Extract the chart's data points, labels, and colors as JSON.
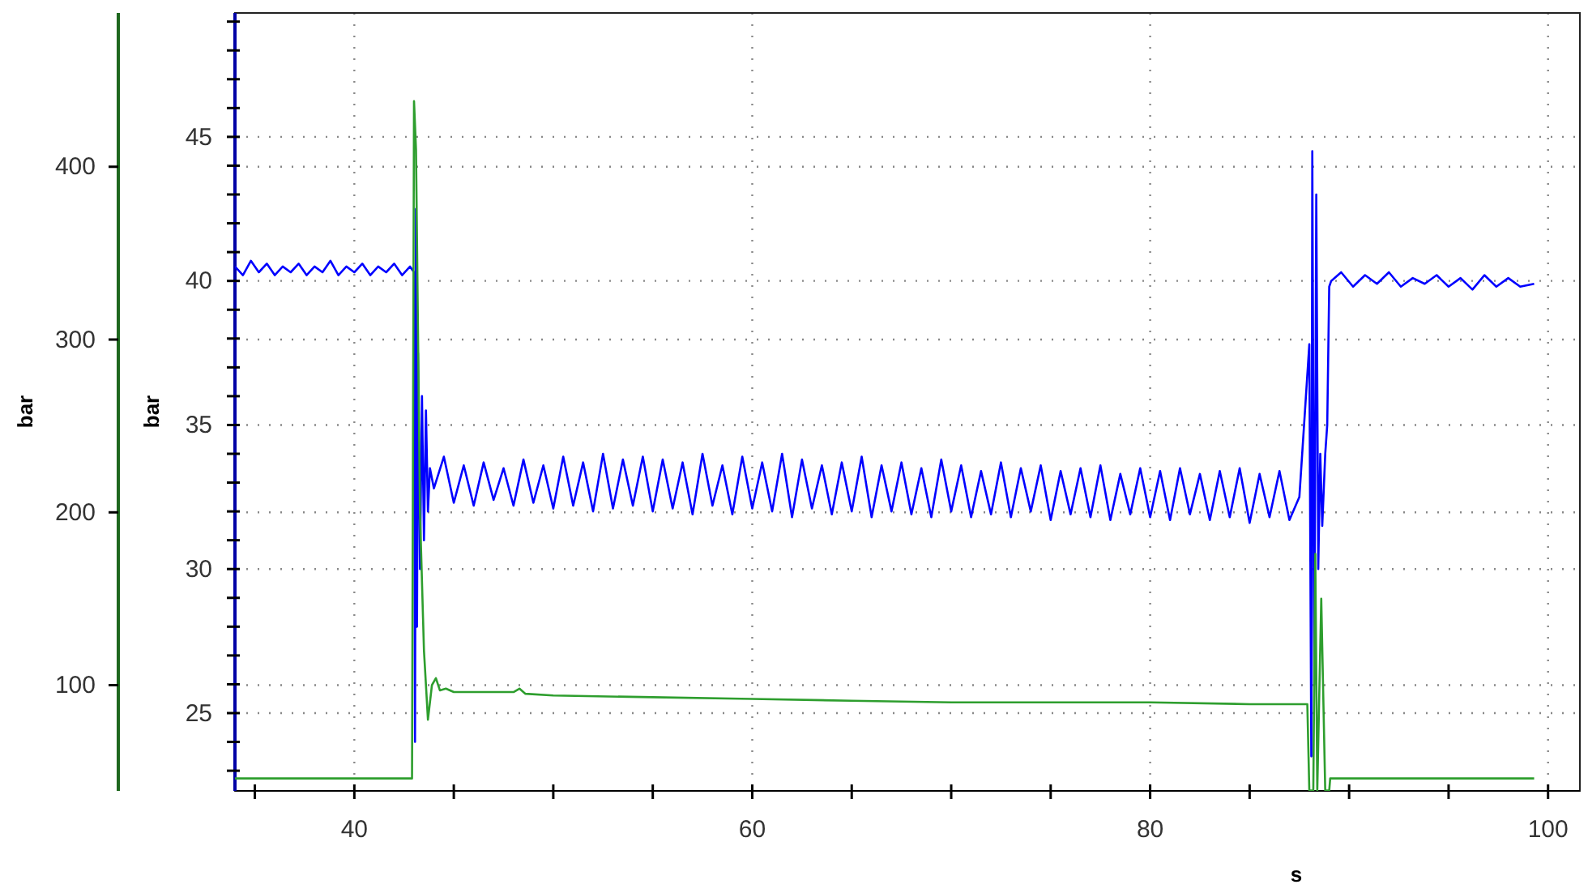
{
  "chart_data": {
    "type": "line",
    "xlabel": "s",
    "ylabel": "bar",
    "y2label": "bar",
    "xlim": [
      34,
      101.6
    ],
    "ylim": [
      22.3,
      49.3
    ],
    "y2lim": [
      38.8,
      489
    ],
    "xticks": [
      {
        "value": 35,
        "label": null
      },
      40,
      {
        "value": 45,
        "label": null
      },
      {
        "value": 50,
        "label": null
      },
      {
        "value": 55,
        "label": null
      },
      60,
      {
        "value": 65,
        "label": null
      },
      {
        "value": 70,
        "label": null
      },
      {
        "value": 75,
        "label": null
      },
      80,
      {
        "value": 85,
        "label": null
      },
      {
        "value": 90,
        "label": null
      },
      {
        "value": 95,
        "label": null
      },
      100
    ],
    "yticks": [
      {
        "value": 23,
        "label": null
      },
      {
        "value": 24,
        "label": null
      },
      25,
      {
        "value": 26,
        "label": null
      },
      {
        "value": 27,
        "label": null
      },
      {
        "value": 28,
        "label": null
      },
      {
        "value": 29,
        "label": null
      },
      30,
      {
        "value": 31,
        "label": null
      },
      {
        "value": 32,
        "label": null
      },
      {
        "value": 33,
        "label": null
      },
      {
        "value": 34,
        "label": null
      },
      35,
      {
        "value": 36,
        "label": null
      },
      {
        "value": 37,
        "label": null
      },
      {
        "value": 38,
        "label": null
      },
      {
        "value": 39,
        "label": null
      },
      40,
      {
        "value": 41,
        "label": null
      },
      {
        "value": 42,
        "label": null
      },
      {
        "value": 43,
        "label": null
      },
      {
        "value": 44,
        "label": null
      },
      45,
      {
        "value": 46,
        "label": null
      },
      {
        "value": 47,
        "label": null
      },
      {
        "value": 48,
        "label": null
      },
      {
        "value": 49,
        "label": null
      }
    ],
    "y2ticks": [
      100,
      200,
      300,
      400
    ],
    "grid": true,
    "line_style": "solid",
    "marker": "none",
    "series": [
      {
        "color": "#0000ff",
        "axis": "y",
        "x": [
          34,
          34.4,
          34.8,
          35.2,
          35.6,
          36,
          36.4,
          36.8,
          37.2,
          37.6,
          38,
          38.4,
          38.8,
          39.2,
          39.6,
          40,
          40.4,
          40.8,
          41.2,
          41.6,
          42,
          42.4,
          42.8,
          43,
          43.05,
          43.1,
          43.15,
          43.2,
          43.3,
          43.4,
          43.5,
          43.6,
          43.7,
          43.8,
          44,
          44.5,
          45,
          45.5,
          46,
          46.5,
          47,
          47.5,
          48,
          48.5,
          49,
          49.5,
          50,
          50.5,
          51,
          51.5,
          52,
          52.5,
          53,
          53.5,
          54,
          54.5,
          55,
          55.5,
          56,
          56.5,
          57,
          57.5,
          58,
          58.5,
          59,
          59.5,
          60,
          60.5,
          61,
          61.5,
          62,
          62.5,
          63,
          63.5,
          64,
          64.5,
          65,
          65.5,
          66,
          66.5,
          67,
          67.5,
          68,
          68.5,
          69,
          69.5,
          70,
          70.5,
          71,
          71.5,
          72,
          72.5,
          73,
          73.5,
          74,
          74.5,
          75,
          75.5,
          76,
          76.5,
          77,
          77.5,
          78,
          78.5,
          79,
          79.5,
          80,
          80.5,
          81,
          81.5,
          82,
          82.5,
          83,
          83.5,
          84,
          84.5,
          85,
          85.5,
          86,
          86.5,
          87,
          87.5,
          88,
          88.1,
          88.15,
          88.25,
          88.35,
          88.45,
          88.55,
          88.65,
          88.8,
          88.9,
          89,
          89.1,
          89.6,
          90.2,
          90.8,
          91.4,
          92,
          92.6,
          93.2,
          93.8,
          94.4,
          95,
          95.6,
          96.2,
          96.8,
          97.4,
          98,
          98.6,
          99.3
        ],
        "values": [
          40.5,
          40.2,
          40.7,
          40.3,
          40.6,
          40.2,
          40.5,
          40.3,
          40.6,
          40.2,
          40.5,
          40.3,
          40.7,
          40.2,
          40.5,
          40.3,
          40.6,
          40.2,
          40.5,
          40.3,
          40.6,
          40.2,
          40.5,
          40.3,
          24,
          42.5,
          28,
          37.5,
          30,
          36,
          31,
          35.5,
          32,
          33.5,
          32.8,
          33.9,
          32.3,
          33.6,
          32.2,
          33.7,
          32.4,
          33.5,
          32.2,
          33.8,
          32.3,
          33.6,
          32.1,
          33.9,
          32.2,
          33.7,
          32.0,
          34.0,
          32.1,
          33.8,
          32.2,
          33.9,
          32.0,
          33.8,
          32.1,
          33.7,
          31.9,
          34.0,
          32.2,
          33.6,
          31.9,
          33.9,
          32.1,
          33.7,
          32.0,
          34.0,
          31.8,
          33.8,
          32.1,
          33.6,
          31.9,
          33.7,
          32.0,
          33.9,
          31.8,
          33.6,
          32.0,
          33.7,
          31.9,
          33.5,
          31.8,
          33.8,
          32.0,
          33.6,
          31.8,
          33.4,
          31.9,
          33.7,
          31.8,
          33.5,
          32.0,
          33.6,
          31.7,
          33.4,
          31.9,
          33.5,
          31.8,
          33.6,
          31.7,
          33.3,
          31.9,
          33.5,
          31.8,
          33.4,
          31.7,
          33.5,
          31.9,
          33.3,
          31.7,
          33.4,
          31.8,
          33.5,
          31.6,
          33.3,
          31.8,
          33.4,
          31.7,
          32.5,
          37.8,
          23.5,
          44.5,
          26,
          43,
          30,
          34,
          31.5,
          34,
          35,
          39.8,
          40,
          40.3,
          39.8,
          40.2,
          39.9,
          40.3,
          39.8,
          40.1,
          39.9,
          40.2,
          39.8,
          40.1,
          39.7,
          40.2,
          39.8,
          40.1,
          39.8,
          39.9
        ]
      },
      {
        "color": "#2e9e2e",
        "axis": "y2",
        "x": [
          34,
          42.9,
          43,
          43.1,
          43.3,
          43.5,
          43.7,
          43.9,
          44.1,
          44.3,
          44.6,
          45,
          46,
          48,
          48.3,
          48.6,
          50,
          55,
          60,
          65,
          70,
          75,
          80,
          85,
          87.9,
          88,
          88.2,
          88.3,
          88.4,
          88.6,
          88.8,
          89,
          89.05,
          99.3
        ],
        "values": [
          46,
          46,
          438,
          410,
          200,
          120,
          80,
          100,
          104,
          97,
          98,
          96,
          96,
          96,
          98,
          95,
          94,
          93,
          92,
          91,
          90,
          90,
          90,
          89,
          89,
          39,
          39,
          176,
          39,
          150,
          39,
          39,
          46,
          46
        ]
      }
    ]
  }
}
